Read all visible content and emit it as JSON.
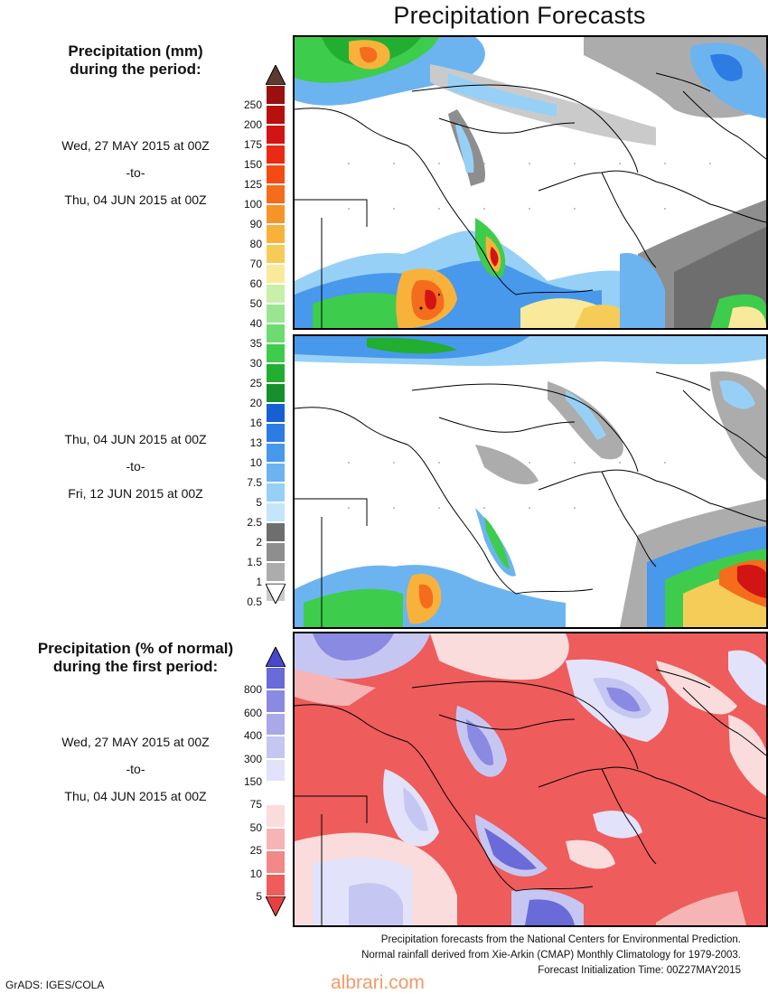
{
  "title": "Precipitation Forecasts",
  "sections": {
    "mm_title": [
      "Precipitation (mm)",
      "during the period:"
    ],
    "pct_title": [
      "Precipitation (% of normal)",
      "during the first period:"
    ]
  },
  "periods": [
    {
      "start": "Wed, 27 MAY 2015 at 00Z",
      "to": "-to-",
      "end": "Thu, 04 JUN 2015 at 00Z"
    },
    {
      "start": "Thu, 04 JUN 2015 at 00Z",
      "to": "-to-",
      "end": "Fri, 12 JUN 2015 at 00Z"
    },
    {
      "start": "Wed, 27 MAY 2015 at 00Z",
      "to": "-to-",
      "end": "Thu, 04 JUN 2015 at 00Z"
    }
  ],
  "mm_scale": {
    "labels": [
      "250",
      "200",
      "175",
      "150",
      "125",
      "100",
      "90",
      "80",
      "70",
      "60",
      "50",
      "40",
      "35",
      "30",
      "25",
      "20",
      "16",
      "13",
      "10",
      "7.5",
      "5",
      "2.5",
      "2",
      "1.5",
      "1",
      "0.5"
    ],
    "colors": [
      "#9a0f0f",
      "#b80f0f",
      "#d21414",
      "#ea2a14",
      "#f44a14",
      "#f46c1c",
      "#f69428",
      "#f8b23c",
      "#f6cc58",
      "#f8ea9a",
      "#c8f0a8",
      "#9ae690",
      "#6cdc70",
      "#3ecc4c",
      "#22ae30",
      "#16902a",
      "#1660d4",
      "#2c7ce4",
      "#4898ec",
      "#6cb4f0",
      "#96d0f6",
      "#c4e6fa",
      "#6e6e6e",
      "#8e8e8e",
      "#acacac",
      "#cacaca"
    ],
    "top_arrow_color": "#5c3a30",
    "bottom_arrow_color": "#ffffff"
  },
  "pct_scale": {
    "labels": [
      "800",
      "600",
      "400",
      "300",
      "150",
      "75",
      "50",
      "25",
      "10",
      "5"
    ],
    "colors": [
      "#6a6ad8",
      "#8a8ae2",
      "#a8a8ea",
      "#c6c6f2",
      "#e2e2fa",
      "#ffffff",
      "#fadcdc",
      "#f6b4b4",
      "#f28888",
      "#ee5c5c"
    ],
    "top_arrow_color": "#4848cc",
    "bottom_arrow_color": "#e84040"
  },
  "footer": [
    "Precipitation forecasts from the National Centers for Environmental Prediction.",
    "Normal rainfall derived from Xie-Arkin (CMAP) Monthly Climatology for 1979-2003.",
    "Forecast Initialization Time: 00Z27MAY2015"
  ],
  "credit": "GrADS: IGES/COLA",
  "watermark": "albrari.com"
}
